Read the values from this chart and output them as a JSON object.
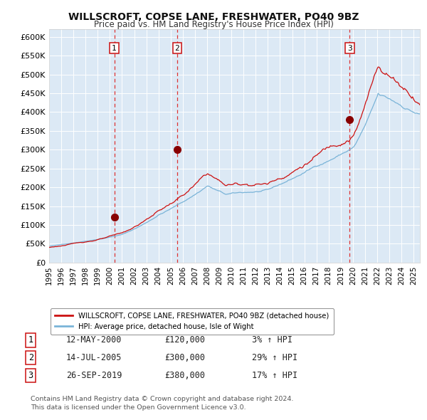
{
  "title": "WILLSCROFT, COPSE LANE, FRESHWATER, PO40 9BZ",
  "subtitle": "Price paid vs. HM Land Registry's House Price Index (HPI)",
  "plot_bg_color": "#dce9f5",
  "grid_color": "#ffffff",
  "hpi_line_color": "#7ab4d8",
  "price_line_color": "#cc1111",
  "sale_marker_color": "#880000",
  "dashed_line_color": "#dd3333",
  "ylim": [
    0,
    620000
  ],
  "yticks": [
    0,
    50000,
    100000,
    150000,
    200000,
    250000,
    300000,
    350000,
    400000,
    450000,
    500000,
    550000,
    600000
  ],
  "ytick_labels": [
    "£0",
    "£50K",
    "£100K",
    "£150K",
    "£200K",
    "£250K",
    "£300K",
    "£350K",
    "£400K",
    "£450K",
    "£500K",
    "£550K",
    "£600K"
  ],
  "xmin": 1995.0,
  "xmax": 2025.5,
  "xticks": [
    1995,
    1996,
    1997,
    1998,
    1999,
    2000,
    2001,
    2002,
    2003,
    2004,
    2005,
    2006,
    2007,
    2008,
    2009,
    2010,
    2011,
    2012,
    2013,
    2014,
    2015,
    2016,
    2017,
    2018,
    2019,
    2020,
    2021,
    2022,
    2023,
    2024,
    2025
  ],
  "legend_line1": "WILLSCROFT, COPSE LANE, FRESHWATER, PO40 9BZ (detached house)",
  "legend_line2": "HPI: Average price, detached house, Isle of Wight",
  "sale1_date": 2000.36,
  "sale1_price": 120000,
  "sale1_label": "1",
  "sale1_date_str": "12-MAY-2000",
  "sale1_amount_str": "£120,000",
  "sale1_hpi_str": "3% ↑ HPI",
  "sale2_date": 2005.53,
  "sale2_price": 300000,
  "sale2_label": "2",
  "sale2_date_str": "14-JUL-2005",
  "sale2_amount_str": "£300,000",
  "sale2_hpi_str": "29% ↑ HPI",
  "sale3_date": 2019.74,
  "sale3_price": 380000,
  "sale3_label": "3",
  "sale3_date_str": "26-SEP-2019",
  "sale3_amount_str": "£380,000",
  "sale3_hpi_str": "17% ↑ HPI",
  "footnote1": "Contains HM Land Registry data © Crown copyright and database right 2024.",
  "footnote2": "This data is licensed under the Open Government Licence v3.0."
}
